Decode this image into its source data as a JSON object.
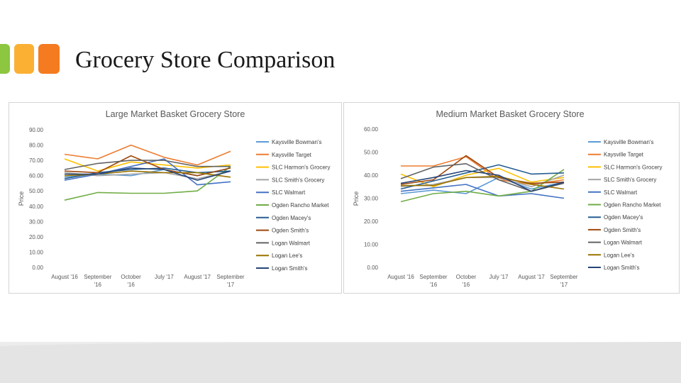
{
  "slide": {
    "title": "Grocery Store Comparison",
    "accent_colors": [
      "#8dc63f",
      "#fbb034",
      "#f47b20"
    ]
  },
  "series_styles": [
    {
      "name": "Kaysville Bowman's",
      "color": "#5b9bd5"
    },
    {
      "name": "Kaysville Target",
      "color": "#ed7d31"
    },
    {
      "name": "SLC Harmon's Grocery",
      "color": "#ffc000"
    },
    {
      "name": "SLC Smith's Grocery",
      "color": "#a5a5a5"
    },
    {
      "name": "SLC Walmart",
      "color": "#4472c4"
    },
    {
      "name": "Ogden Rancho Market",
      "color": "#70ad47"
    },
    {
      "name": "Ogden Macey's",
      "color": "#255e91"
    },
    {
      "name": "Ogden Smith's",
      "color": "#9e480e"
    },
    {
      "name": "Logan Walmart",
      "color": "#636363"
    },
    {
      "name": "Logan Lee's",
      "color": "#997300"
    },
    {
      "name": "Logan Smith's",
      "color": "#264478"
    }
  ],
  "chart_data": [
    {
      "type": "line",
      "title": "Large Market Basket Grocery Store",
      "xlabel": "",
      "ylabel": "Price",
      "ylim": [
        0,
        90
      ],
      "y_ticks": [
        "0.00",
        "10.00",
        "20.00",
        "30.00",
        "40.00",
        "50.00",
        "60.00",
        "70.00",
        "80.00",
        "90.00"
      ],
      "categories": [
        "August '16",
        "September '16",
        "October '16",
        "July '17",
        "August '17",
        "September '17"
      ],
      "grid": false,
      "legend_position": "right",
      "series": [
        {
          "name": "Kaysville Bowman's",
          "values": [
            59,
            61,
            60,
            64,
            60,
            65
          ]
        },
        {
          "name": "Kaysville Target",
          "values": [
            74,
            71,
            80,
            72,
            67,
            76
          ]
        },
        {
          "name": "SLC Harmon's Grocery",
          "values": [
            71,
            63,
            69,
            67,
            65,
            67
          ]
        },
        {
          "name": "SLC Smith's Grocery",
          "values": [
            62,
            60,
            61,
            62,
            58,
            63
          ]
        },
        {
          "name": "SLC Walmart",
          "values": [
            57,
            61,
            66,
            71,
            54,
            56
          ]
        },
        {
          "name": "Ogden Rancho Market",
          "values": [
            44,
            49,
            48.5,
            48.5,
            50,
            66
          ]
        },
        {
          "name": "Ogden Macey's",
          "values": [
            58,
            62,
            64,
            65,
            62,
            63
          ]
        },
        {
          "name": "Ogden Smith's",
          "values": [
            63,
            62,
            73,
            64,
            60,
            65
          ]
        },
        {
          "name": "Logan Walmart",
          "values": [
            64,
            68,
            70,
            70,
            66,
            66
          ]
        },
        {
          "name": "Logan Lee's",
          "values": [
            60,
            61,
            63,
            62,
            62,
            59
          ]
        },
        {
          "name": "Logan Smith's",
          "values": [
            61,
            61,
            65,
            64,
            57,
            63
          ]
        }
      ]
    },
    {
      "type": "line",
      "title": "Medium Market Basket Grocery Store",
      "xlabel": "",
      "ylabel": "Price",
      "ylim": [
        0,
        60
      ],
      "y_ticks": [
        "0.00",
        "10.00",
        "20.00",
        "30.00",
        "40.00",
        "50.00",
        "60.00"
      ],
      "categories": [
        "August '16",
        "September '16",
        "October '16",
        "July '17",
        "August '17",
        "September '17"
      ],
      "grid": false,
      "legend_position": "right",
      "series": [
        {
          "name": "Kaysville Bowman's",
          "values": [
            32,
            33.5,
            32,
            39,
            34,
            37
          ]
        },
        {
          "name": "Kaysville Target",
          "values": [
            44,
            44,
            48,
            38,
            36,
            38
          ]
        },
        {
          "name": "SLC Harmon's Grocery",
          "values": [
            40.5,
            35,
            40,
            43,
            37,
            39
          ]
        },
        {
          "name": "SLC Smith's Grocery",
          "values": [
            35,
            36,
            39,
            39,
            35,
            40
          ]
        },
        {
          "name": "SLC Walmart",
          "values": [
            33,
            34.5,
            36,
            31,
            32,
            30
          ]
        },
        {
          "name": "Ogden Rancho Market",
          "values": [
            28.5,
            32,
            33,
            31,
            33,
            42.5
          ]
        },
        {
          "name": "Ogden Macey's",
          "values": [
            34,
            37.5,
            41,
            44.5,
            40.5,
            41
          ]
        },
        {
          "name": "Ogden Smith's",
          "values": [
            36,
            38,
            48.5,
            39,
            36.5,
            37
          ]
        },
        {
          "name": "Logan Walmart",
          "values": [
            38.5,
            43.5,
            45,
            38,
            33,
            36.5
          ]
        },
        {
          "name": "Logan Lee's",
          "values": [
            35.5,
            35.5,
            39,
            39.5,
            36,
            34
          ]
        },
        {
          "name": "Logan Smith's",
          "values": [
            36.5,
            39,
            42,
            40,
            33,
            37
          ]
        }
      ]
    }
  ]
}
